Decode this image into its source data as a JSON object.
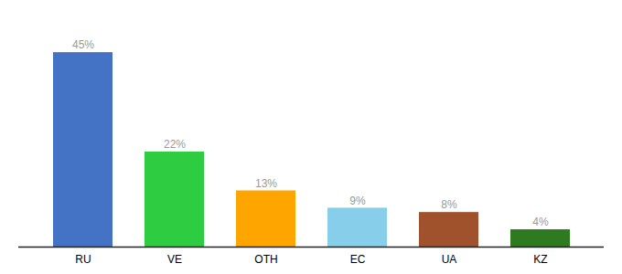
{
  "chart_data": {
    "type": "bar",
    "categories": [
      "RU",
      "VE",
      "OTH",
      "EC",
      "UA",
      "KZ"
    ],
    "values": [
      45,
      22,
      13,
      9,
      8,
      4
    ],
    "value_labels": [
      "45%",
      "22%",
      "13%",
      "9%",
      "8%",
      "4%"
    ],
    "colors": [
      "#4472C4",
      "#2ECC40",
      "#FFA500",
      "#87CEEB",
      "#A0522D",
      "#2D7A1F"
    ],
    "ylim": [
      0,
      52
    ],
    "data_labels": true,
    "tick_labels": "x"
  }
}
